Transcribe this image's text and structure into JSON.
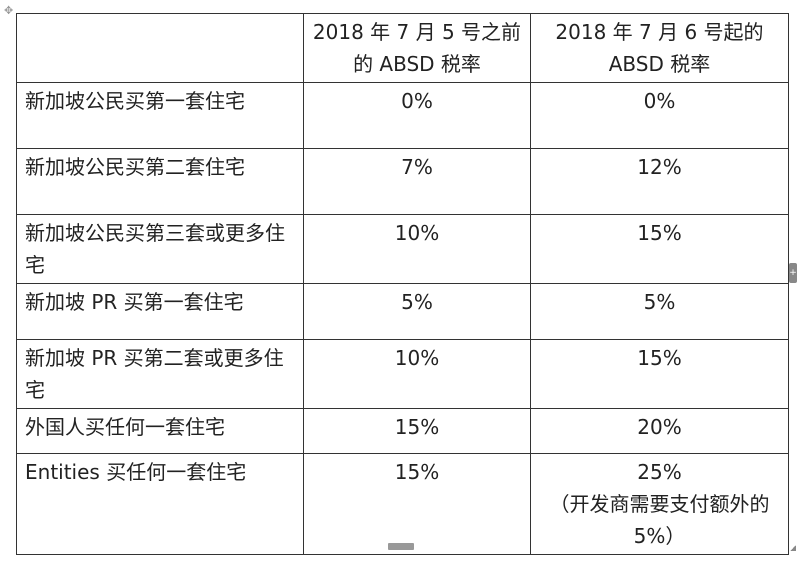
{
  "table": {
    "header": [
      "",
      "2018 年 7 月 5 号之前的 ABSD 税率",
      "2018 年 7 月 6 号起的 ABSD 税率"
    ],
    "rows": [
      {
        "label": "新加坡公民买第一套住宅",
        "before": "0%",
        "after": "0%"
      },
      {
        "label": "新加坡公民买第二套住宅",
        "before": "7%",
        "after": "12%"
      },
      {
        "label": "新加坡公民买第三套或更多住宅",
        "before": "10%",
        "after": "15%"
      },
      {
        "label": "新加坡 PR 买第一套住宅",
        "before": "5%",
        "after": "5%"
      },
      {
        "label": "新加坡 PR 买第二套或更多住宅",
        "before": "10%",
        "after": "15%"
      },
      {
        "label": "外国人买任何一套住宅",
        "before": "15%",
        "after": "20%"
      },
      {
        "label": "Entities 买任何一套住宅",
        "before": "15%",
        "after": "25%",
        "note": "（开发商需要支付额外的 5%）"
      }
    ]
  },
  "icons": {
    "move": "move-handle-icon",
    "resize": "resize-handle-icon",
    "add_row": "plus-icon",
    "add_col": "plus-icon"
  }
}
